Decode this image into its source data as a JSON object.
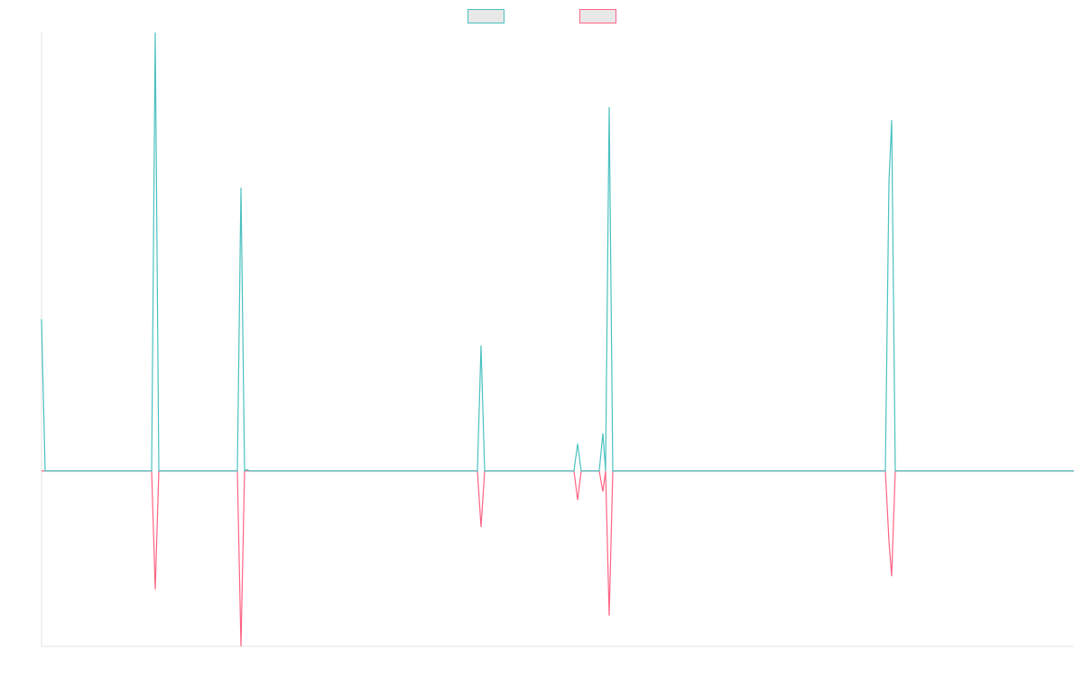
{
  "chart_data": {
    "type": "line",
    "xlim": [
      0,
      1144
    ],
    "ylim": [
      -40,
      100
    ],
    "legend": "top",
    "series": [
      {
        "color": "#ff6384",
        "x": [
          0,
          122,
          126,
          130,
          217,
          221,
          225,
          483,
          487,
          491,
          590,
          594,
          598,
          618,
          622,
          625,
          629,
          633,
          935,
          939,
          942,
          946,
          1144
        ],
        "values": [
          0,
          0,
          -27,
          0,
          0,
          -40,
          0,
          0,
          -12.8,
          0,
          0,
          -6.6,
          0,
          0,
          -4.7,
          0,
          -33,
          0,
          0,
          -16,
          -24,
          0,
          0
        ]
      },
      {
        "color": "#4bc0c0",
        "x": [
          0,
          4,
          122,
          126,
          130,
          217,
          221,
          225,
          227,
          231,
          483,
          487,
          491,
          590,
          594,
          598,
          618,
          622,
          625,
          629,
          633,
          935,
          939,
          942,
          946,
          1144
        ],
        "values": [
          34.6,
          0,
          0,
          100,
          0,
          0,
          64.6,
          0,
          0.3,
          0,
          0,
          28.6,
          0,
          0,
          6.2,
          0,
          0,
          8.6,
          0,
          83,
          0,
          0,
          66,
          80,
          0,
          0
        ]
      }
    ]
  }
}
